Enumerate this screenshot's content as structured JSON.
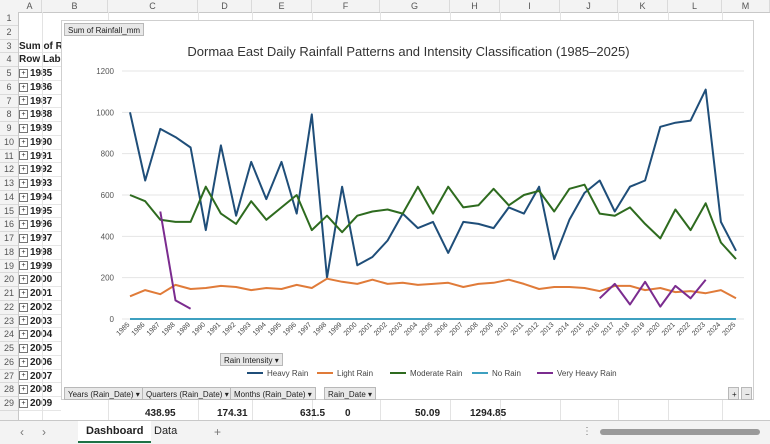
{
  "columns": [
    "A",
    "B",
    "C",
    "D",
    "E",
    "F",
    "G",
    "H",
    "I",
    "J",
    "K",
    "L",
    "M"
  ],
  "rows": [
    "1",
    "2",
    "3",
    "4",
    "5",
    "6",
    "7",
    "8",
    "9",
    "10",
    "11",
    "12",
    "13",
    "14",
    "15",
    "16",
    "17",
    "18",
    "19",
    "20",
    "21",
    "22",
    "23",
    "24",
    "25",
    "26",
    "27",
    "28",
    "29"
  ],
  "cells": {
    "r3": "Sum of R",
    "r4": "Row Labe",
    "years": [
      "1985",
      "1986",
      "1987",
      "1988",
      "1989",
      "1990",
      "1991",
      "1992",
      "1993",
      "1994",
      "1995",
      "1996",
      "1997",
      "1998",
      "1999",
      "2000",
      "2001",
      "2002",
      "2003",
      "2004",
      "2005",
      "2006",
      "2007",
      "2008",
      "2009"
    ]
  },
  "totals": [
    "438.95",
    "174.31",
    "631.5",
    "0",
    "50.09",
    "1294.85"
  ],
  "chart": {
    "field_button": "Sum of Rainfall_mm",
    "title": "Dormaa East Daily Rainfall Patterns and Intensity Classification (1985–2025)",
    "legend_button": "Rain Intensity ▾",
    "filter_buttons": [
      "Years (Rain_Date) ▾",
      "Quarters (Rain_Date) ▾",
      "Months (Rain_Date) ▾",
      "Rain_Date ▾"
    ],
    "zoom_buttons": [
      "+",
      "−"
    ]
  },
  "tabs": [
    "Dashboard",
    "Data"
  ],
  "add_sheet": "+",
  "chart_data": {
    "type": "line",
    "title": "Dormaa East Daily Rainfall Patterns and Intensity Classification (1985–2025)",
    "ylim": [
      0,
      1200
    ],
    "yticks": [
      0,
      200,
      400,
      600,
      800,
      1000,
      1200
    ],
    "x": [
      "1985",
      "1986",
      "1987",
      "1988",
      "1989",
      "1990",
      "1991",
      "1992",
      "1993",
      "1994",
      "1995",
      "1996",
      "1997",
      "1998",
      "1999",
      "2000",
      "2001",
      "2002",
      "2003",
      "2004",
      "2005",
      "2006",
      "2007",
      "2008",
      "2009",
      "2010",
      "2011",
      "2012",
      "2013",
      "2014",
      "2015",
      "2016",
      "2017",
      "2018",
      "2019",
      "2020",
      "2021",
      "2022",
      "2023",
      "2024",
      "2025"
    ],
    "series": [
      {
        "name": "Heavy Rain",
        "color": "#1f4e79",
        "values": [
          1000,
          670,
          920,
          880,
          830,
          430,
          840,
          500,
          760,
          580,
          760,
          510,
          990,
          200,
          640,
          260,
          300,
          380,
          510,
          440,
          470,
          320,
          470,
          460,
          440,
          540,
          510,
          640,
          290,
          480,
          610,
          670,
          520,
          640,
          670,
          930,
          950,
          960,
          1110,
          470,
          330
        ]
      },
      {
        "name": "Light Rain",
        "color": "#e07b39",
        "values": [
          110,
          140,
          120,
          165,
          145,
          150,
          160,
          155,
          140,
          150,
          145,
          165,
          150,
          195,
          180,
          170,
          190,
          170,
          175,
          165,
          170,
          175,
          155,
          170,
          175,
          190,
          170,
          145,
          155,
          155,
          150,
          135,
          160,
          160,
          140,
          150,
          130,
          135,
          125,
          140,
          100
        ]
      },
      {
        "name": "Moderate Rain",
        "color": "#2e6b1f",
        "values": [
          600,
          570,
          480,
          470,
          470,
          640,
          510,
          460,
          570,
          480,
          540,
          600,
          430,
          500,
          420,
          500,
          520,
          530,
          510,
          640,
          510,
          640,
          540,
          550,
          630,
          550,
          600,
          620,
          520,
          630,
          650,
          510,
          500,
          540,
          460,
          390,
          530,
          430,
          560,
          370,
          290
        ]
      },
      {
        "name": "No Rain",
        "color": "#3ea0c0",
        "values": [
          0,
          0,
          0,
          0,
          0,
          0,
          0,
          0,
          0,
          0,
          0,
          0,
          0,
          0,
          0,
          0,
          0,
          0,
          0,
          0,
          0,
          0,
          0,
          0,
          0,
          0,
          0,
          0,
          0,
          0,
          0,
          0,
          0,
          0,
          0,
          0,
          0,
          0,
          0,
          0,
          0
        ]
      },
      {
        "name": "Very Heavy Rain",
        "color": "#7b2c8f",
        "values": [
          null,
          null,
          520,
          90,
          50,
          null,
          null,
          null,
          null,
          null,
          null,
          null,
          null,
          null,
          null,
          null,
          null,
          null,
          null,
          null,
          null,
          null,
          null,
          null,
          null,
          null,
          null,
          null,
          null,
          null,
          null,
          100,
          170,
          70,
          180,
          60,
          160,
          100,
          190,
          null,
          null
        ]
      }
    ],
    "legend_position": "bottom"
  }
}
